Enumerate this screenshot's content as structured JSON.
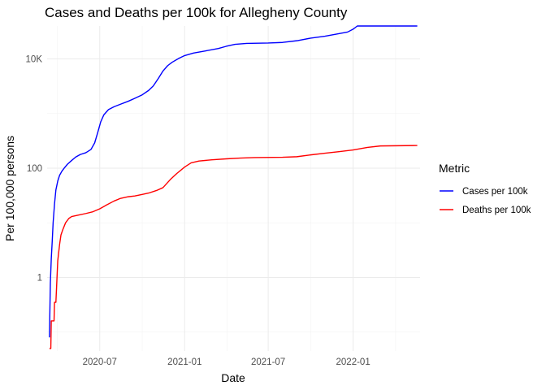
{
  "chart_data": {
    "type": "line",
    "title": "Cases and Deaths per 100k for Allegheny County",
    "xlabel": "Date",
    "ylabel": "Per 100,000 persons",
    "y_scale": "log10",
    "ylim": [
      0.045,
      40000
    ],
    "xlim": [
      "2020-03-09",
      "2022-05-26"
    ],
    "x_ticks": [
      {
        "date": "2020-07-01",
        "label": "2020-07"
      },
      {
        "date": "2021-01-01",
        "label": "2021-01"
      },
      {
        "date": "2021-07-01",
        "label": "2021-07"
      },
      {
        "date": "2022-01-01",
        "label": "2022-01"
      }
    ],
    "y_ticks": [
      {
        "value": 1,
        "label": "1"
      },
      {
        "value": 100,
        "label": "100"
      },
      {
        "value": 10000,
        "label": "10K"
      }
    ],
    "grid": true,
    "legend": {
      "title": "Metric",
      "position": "right"
    },
    "series": [
      {
        "name": "Cases per 100k",
        "color": "#0000ff",
        "points": [
          [
            "2020-03-14",
            0.08
          ],
          [
            "2020-03-16",
            0.8
          ],
          [
            "2020-03-18",
            2.2
          ],
          [
            "2020-03-20",
            4.5
          ],
          [
            "2020-03-22",
            10
          ],
          [
            "2020-03-25",
            22
          ],
          [
            "2020-03-28",
            40
          ],
          [
            "2020-04-01",
            58
          ],
          [
            "2020-04-05",
            74
          ],
          [
            "2020-04-10",
            88
          ],
          [
            "2020-04-15",
            100
          ],
          [
            "2020-04-22",
            118
          ],
          [
            "2020-05-01",
            138
          ],
          [
            "2020-05-10",
            160
          ],
          [
            "2020-05-20",
            178
          ],
          [
            "2020-06-01",
            192
          ],
          [
            "2020-06-12",
            220
          ],
          [
            "2020-06-20",
            290
          ],
          [
            "2020-06-26",
            430
          ],
          [
            "2020-07-03",
            700
          ],
          [
            "2020-07-10",
            950
          ],
          [
            "2020-07-20",
            1180
          ],
          [
            "2020-08-01",
            1330
          ],
          [
            "2020-08-15",
            1480
          ],
          [
            "2020-09-01",
            1680
          ],
          [
            "2020-09-15",
            1900
          ],
          [
            "2020-10-01",
            2200
          ],
          [
            "2020-10-15",
            2650
          ],
          [
            "2020-10-25",
            3200
          ],
          [
            "2020-11-05",
            4400
          ],
          [
            "2020-11-15",
            6000
          ],
          [
            "2020-11-25",
            7500
          ],
          [
            "2020-12-05",
            8700
          ],
          [
            "2020-12-20",
            10300
          ],
          [
            "2021-01-01",
            11500
          ],
          [
            "2021-01-20",
            12800
          ],
          [
            "2021-02-15",
            14000
          ],
          [
            "2021-03-15",
            15500
          ],
          [
            "2021-04-01",
            17000
          ],
          [
            "2021-04-20",
            18500
          ],
          [
            "2021-05-15",
            19200
          ],
          [
            "2021-07-01",
            19500
          ],
          [
            "2021-08-01",
            20000
          ],
          [
            "2021-09-01",
            21500
          ],
          [
            "2021-10-01",
            24000
          ],
          [
            "2021-11-01",
            26000
          ],
          [
            "2021-12-01",
            29000
          ],
          [
            "2021-12-20",
            31000
          ],
          [
            "2022-01-01",
            35000
          ],
          [
            "2022-01-10",
            45000
          ],
          [
            "2022-01-25",
            52000
          ],
          [
            "2022-02-15",
            54000
          ],
          [
            "2022-03-15",
            55000
          ],
          [
            "2022-05-20",
            56000
          ]
        ]
      },
      {
        "name": "Deaths per 100k",
        "color": "#ff0000",
        "points": [
          [
            "2020-03-14",
            0.05
          ],
          [
            "2020-03-17",
            0.05
          ],
          [
            "2020-03-18",
            0.16
          ],
          [
            "2020-03-24",
            0.16
          ],
          [
            "2020-03-25",
            0.35
          ],
          [
            "2020-03-28",
            0.35
          ],
          [
            "2020-04-01",
            2
          ],
          [
            "2020-04-05",
            4
          ],
          [
            "2020-04-08",
            6
          ],
          [
            "2020-04-12",
            7.5
          ],
          [
            "2020-04-18",
            10
          ],
          [
            "2020-04-25",
            12
          ],
          [
            "2020-05-01",
            13
          ],
          [
            "2020-05-15",
            13.8
          ],
          [
            "2020-06-01",
            14.8
          ],
          [
            "2020-06-15",
            15.8
          ],
          [
            "2020-07-01",
            18
          ],
          [
            "2020-07-15",
            21
          ],
          [
            "2020-08-01",
            25
          ],
          [
            "2020-08-15",
            28
          ],
          [
            "2020-09-01",
            30
          ],
          [
            "2020-09-15",
            31
          ],
          [
            "2020-10-01",
            33
          ],
          [
            "2020-10-15",
            35
          ],
          [
            "2020-11-01",
            39
          ],
          [
            "2020-11-15",
            44
          ],
          [
            "2020-12-01",
            62
          ],
          [
            "2020-12-15",
            80
          ],
          [
            "2021-01-01",
            105
          ],
          [
            "2021-01-15",
            125
          ],
          [
            "2021-02-01",
            135
          ],
          [
            "2021-03-01",
            142
          ],
          [
            "2021-04-01",
            148
          ],
          [
            "2021-05-01",
            153
          ],
          [
            "2021-06-01",
            156
          ],
          [
            "2021-08-01",
            158
          ],
          [
            "2021-09-01",
            162
          ],
          [
            "2021-10-01",
            175
          ],
          [
            "2021-11-01",
            188
          ],
          [
            "2021-12-01",
            200
          ],
          [
            "2022-01-01",
            215
          ],
          [
            "2022-02-01",
            240
          ],
          [
            "2022-03-01",
            255
          ],
          [
            "2022-05-20",
            260
          ]
        ]
      }
    ]
  }
}
